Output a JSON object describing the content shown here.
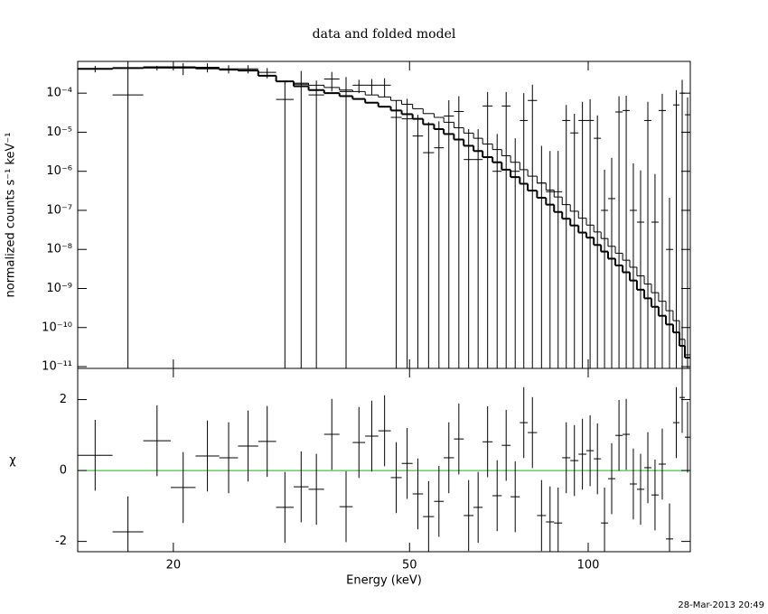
{
  "chart_data": [
    {
      "type": "spectrum",
      "title": "data and folded model",
      "ylabel": "normalized counts s⁻¹ keV⁻¹",
      "log_y": true,
      "log_x": true,
      "xlim": [
        13.8,
        148.6
      ],
      "ylim": [
        9e-12,
        0.00065
      ],
      "yticks": [
        {
          "value": 1e-11,
          "label": "10⁻¹¹"
        },
        {
          "value": 1e-10,
          "label": "10⁻¹⁰"
        },
        {
          "value": 1e-09,
          "label": "10⁻⁹"
        },
        {
          "value": 1e-08,
          "label": "10⁻⁸"
        },
        {
          "value": 1e-07,
          "label": "10⁻⁷"
        },
        {
          "value": 1e-06,
          "label": "10⁻⁶"
        },
        {
          "value": 1e-05,
          "label": "10⁻⁵"
        },
        {
          "value": 0.0001,
          "label": "10⁻⁴"
        }
      ],
      "bins": [
        13.8,
        15.8,
        17.8,
        19.8,
        21.8,
        23.9,
        25.7,
        27.8,
        29.8,
        31.9,
        33.8,
        35.9,
        38.1,
        40.1,
        42.1,
        44.3,
        46.5,
        48.5,
        50.6,
        52.7,
        55.0,
        57.1,
        59.4,
        61.7,
        64.1,
        66.4,
        69.0,
        71.5,
        74.0,
        76.7,
        79.1,
        82.0,
        84.9,
        87.6,
        90.4,
        93.3,
        96.3,
        99.3,
        102.2,
        105.1,
        108.0,
        111.1,
        114.3,
        117.5,
        120.8,
        124.3,
        127.8,
        131.4,
        135.2,
        139.0,
        142.5,
        145.5,
        148.6
      ],
      "data": {
        "color": "#000000",
        "values": [
          0.00042,
          9e-05,
          0.00044,
          0.00044,
          0.00046,
          0.00042,
          0.00042,
          0.00034,
          6.9e-05,
          0.00017,
          9e-05,
          0.00023,
          0.00011,
          0.00016,
          0.00016,
          0.00016,
          2.4e-05,
          2.2e-05,
          8e-06,
          3e-06,
          4e-06,
          2.6e-05,
          3.4e-05,
          2e-06,
          2e-06,
          4.7e-05,
          1e-06,
          4.7e-05,
          1e-06,
          2e-05,
          6.5e-05,
          5e-07,
          3e-07,
          3e-07,
          2e-05,
          9.6e-06,
          2e-05,
          2e-05,
          7e-06,
          1e-07,
          2e-07,
          3.3e-05,
          3.6e-05,
          1e-07,
          5e-08,
          2e-05,
          5e-08,
          3.6e-05,
          1e-08,
          5e-05,
          0.0001,
          2.8e-05
        ],
        "errors": [
          8e-05,
          0.00056,
          6e-05,
          0.00015,
          0.00012,
          0.0001,
          0.0001,
          0.0001,
          0.00013,
          0.0002,
          0.00012,
          0.00012,
          0.00015,
          6e-05,
          7e-05,
          8e-05,
          4e-05,
          5e-05,
          2e-05,
          1.5e-05,
          1.5e-05,
          4e-05,
          5e-05,
          1e-05,
          1e-05,
          6e-05,
          8e-06,
          6e-05,
          6e-06,
          8e-05,
          0.0001,
          4e-06,
          3e-06,
          3e-06,
          3e-05,
          2e-05,
          4e-05,
          5e-05,
          2e-05,
          1e-06,
          2e-06,
          5e-05,
          5e-05,
          1.5e-06,
          1e-06,
          4e-05,
          8e-07,
          6e-05,
          2e-07,
          7e-05,
          0.00012,
          5e-05
        ]
      },
      "models": [
        {
          "color": "#000000",
          "line_width": 2,
          "values": [
            0.00042,
            0.00044,
            0.00046,
            0.00046,
            0.00043,
            0.0004,
            0.00038,
            0.00028,
            0.0002,
            0.00015,
            0.00012,
            0.0001,
            8.4e-05,
            7.1e-05,
            5.7e-05,
            4.5e-05,
            3.6e-05,
            2.9e-05,
            2.2e-05,
            1.6e-05,
            1.2e-05,
            9e-06,
            6.5e-06,
            4.5e-06,
            3.3e-06,
            2.3e-06,
            1.7e-06,
            1.1e-06,
            7.1e-07,
            4.8e-07,
            3.2e-07,
            2.1e-07,
            1.4e-07,
            9.1e-08,
            6.1e-08,
            4.1e-08,
            2.7e-08,
            2e-08,
            1.3e-08,
            8.8e-09,
            5.8e-09,
            3.9e-09,
            2.6e-09,
            1.6e-09,
            9.3e-10,
            5.6e-10,
            3.4e-10,
            2e-10,
            1.2e-10,
            7.5e-11,
            3.4e-11,
            1.7e-11
          ]
        },
        {
          "color": "#000000",
          "line_width": 1,
          "values": [
            0.00042,
            0.00044,
            0.00046,
            0.00046,
            0.00043,
            0.0004,
            0.00038,
            0.00028,
            0.0002,
            0.00018,
            0.00016,
            0.00014,
            0.00012,
            0.00011,
            9e-05,
            8e-05,
            6.5e-05,
            5.2e-05,
            4e-05,
            3e-05,
            2.4e-05,
            1.8e-05,
            1.3e-05,
            9.5e-06,
            7e-06,
            5e-06,
            3.6e-06,
            2.5e-06,
            1.7e-06,
            1.1e-06,
            7.5e-07,
            5e-07,
            3.3e-07,
            2.2e-07,
            1.4e-07,
            9.5e-08,
            6.3e-08,
            4.2e-08,
            2.8e-08,
            1.9e-08,
            1.2e-08,
            8e-09,
            5.3e-09,
            3.5e-09,
            2.1e-09,
            1.3e-09,
            7.8e-10,
            4.7e-10,
            2.7e-10,
            1.5e-10,
            5e-11,
            2e-11
          ]
        }
      ]
    },
    {
      "type": "residuals",
      "ylabel": "χ",
      "xlabel": "Energy (keV)",
      "log_x": true,
      "xlim": [
        13.8,
        148.6
      ],
      "xticks": [
        20,
        50,
        100
      ],
      "ylim": [
        -2.29,
        2.88
      ],
      "yticks": [
        -2,
        0,
        2
      ],
      "color": "#000000",
      "zero_line_color": "#00c800",
      "error": 1,
      "values": [
        0.43,
        -1.73,
        0.84,
        -0.48,
        0.41,
        0.36,
        0.69,
        0.82,
        -1.04,
        -0.46,
        -0.53,
        1.02,
        -1.02,
        0.79,
        0.97,
        1.12,
        -0.2,
        0.2,
        -0.66,
        -1.3,
        -0.87,
        0.36,
        0.89,
        -1.27,
        -1.04,
        0.81,
        -0.71,
        0.71,
        -0.74,
        1.35,
        1.07,
        -1.27,
        -1.45,
        -1.48,
        0.36,
        0.28,
        0.46,
        0.56,
        0.33,
        -1.48,
        -0.23,
        0.99,
        1.02,
        -0.38,
        -0.53,
        0.08,
        -0.69,
        0.18,
        -1.93,
        1.35,
        2.06,
        0.94
      ]
    }
  ],
  "timestamp": "28-Mar-2013 20:49"
}
